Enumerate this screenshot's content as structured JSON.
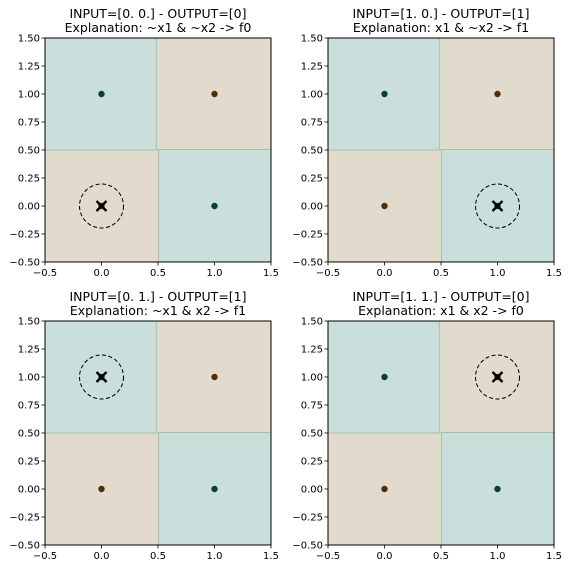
{
  "colors": {
    "region_f0": "#e3dace",
    "region_f1": "#cadedb",
    "point_f0": "#4f2e0c",
    "point_f1": "#0a3f35",
    "boundary": "#a9c0a8",
    "marker": "#000000"
  },
  "chart_data": [
    {
      "type": "scatter",
      "title": "INPUT=[0. 0.] - OUTPUT=[0]",
      "subtitle": "Explanation: ~x1 & ~x2 -> f0",
      "xlim": [
        -0.5,
        1.5
      ],
      "ylim": [
        -0.5,
        1.5
      ],
      "xticks": [
        "−0.5",
        "0.0",
        "0.5",
        "1.0",
        "1.5"
      ],
      "yticks": [
        "1.50",
        "1.25",
        "1.00",
        "0.75",
        "0.50",
        "0.25",
        "0.00",
        "−0.25",
        "−0.50"
      ],
      "points": [
        {
          "x": 0,
          "y": 1,
          "class": "f1"
        },
        {
          "x": 1,
          "y": 1,
          "class": "f0"
        },
        {
          "x": 0,
          "y": 0,
          "class": "f0"
        },
        {
          "x": 1,
          "y": 0,
          "class": "f1"
        }
      ],
      "regions": {
        "bottom_left": "f0",
        "top_left": "f1",
        "top_right": "f0",
        "bottom_right": "f1"
      },
      "highlight": {
        "x": 0,
        "y": 0
      }
    },
    {
      "type": "scatter",
      "title": "INPUT=[1. 0.] - OUTPUT=[1]",
      "subtitle": "Explanation: x1 & ~x2 -> f1",
      "xlim": [
        -0.5,
        1.5
      ],
      "ylim": [
        -0.5,
        1.5
      ],
      "xticks": [
        "−0.5",
        "0.0",
        "0.5",
        "1.0",
        "1.5"
      ],
      "yticks": [
        "1.50",
        "1.25",
        "1.00",
        "0.75",
        "0.50",
        "0.25",
        "0.00",
        "−0.25",
        "−0.50"
      ],
      "points": [
        {
          "x": 0,
          "y": 1,
          "class": "f1"
        },
        {
          "x": 1,
          "y": 1,
          "class": "f0"
        },
        {
          "x": 0,
          "y": 0,
          "class": "f0"
        },
        {
          "x": 1,
          "y": 0,
          "class": "f1"
        }
      ],
      "regions": {
        "bottom_left": "f0",
        "top_left": "f1",
        "top_right": "f0",
        "bottom_right": "f1"
      },
      "highlight": {
        "x": 1,
        "y": 0
      }
    },
    {
      "type": "scatter",
      "title": "INPUT=[0. 1.] - OUTPUT=[1]",
      "subtitle": "Explanation: ~x1 & x2 -> f1",
      "xlim": [
        -0.5,
        1.5
      ],
      "ylim": [
        -0.5,
        1.5
      ],
      "xticks": [
        "−0.5",
        "0.0",
        "0.5",
        "1.0",
        "1.5"
      ],
      "yticks": [
        "1.50",
        "1.25",
        "1.00",
        "0.75",
        "0.50",
        "0.25",
        "0.00",
        "−0.25",
        "−0.50"
      ],
      "points": [
        {
          "x": 0,
          "y": 1,
          "class": "f1"
        },
        {
          "x": 1,
          "y": 1,
          "class": "f0"
        },
        {
          "x": 0,
          "y": 0,
          "class": "f0"
        },
        {
          "x": 1,
          "y": 0,
          "class": "f1"
        }
      ],
      "regions": {
        "bottom_left": "f0",
        "top_left": "f1",
        "top_right": "f0",
        "bottom_right": "f1"
      },
      "highlight": {
        "x": 0,
        "y": 1
      }
    },
    {
      "type": "scatter",
      "title": "INPUT=[1. 1.] - OUTPUT=[0]",
      "subtitle": "Explanation: x1 & x2 -> f0",
      "xlim": [
        -0.5,
        1.5
      ],
      "ylim": [
        -0.5,
        1.5
      ],
      "xticks": [
        "−0.5",
        "0.0",
        "0.5",
        "1.0",
        "1.5"
      ],
      "yticks": [
        "1.50",
        "1.25",
        "1.00",
        "0.75",
        "0.50",
        "0.25",
        "0.00",
        "−0.25",
        "−0.50"
      ],
      "points": [
        {
          "x": 0,
          "y": 1,
          "class": "f1"
        },
        {
          "x": 1,
          "y": 1,
          "class": "f0"
        },
        {
          "x": 0,
          "y": 0,
          "class": "f0"
        },
        {
          "x": 1,
          "y": 0,
          "class": "f1"
        }
      ],
      "regions": {
        "bottom_left": "f0",
        "top_left": "f1",
        "top_right": "f0",
        "bottom_right": "f1"
      },
      "highlight": {
        "x": 1,
        "y": 1
      }
    }
  ]
}
